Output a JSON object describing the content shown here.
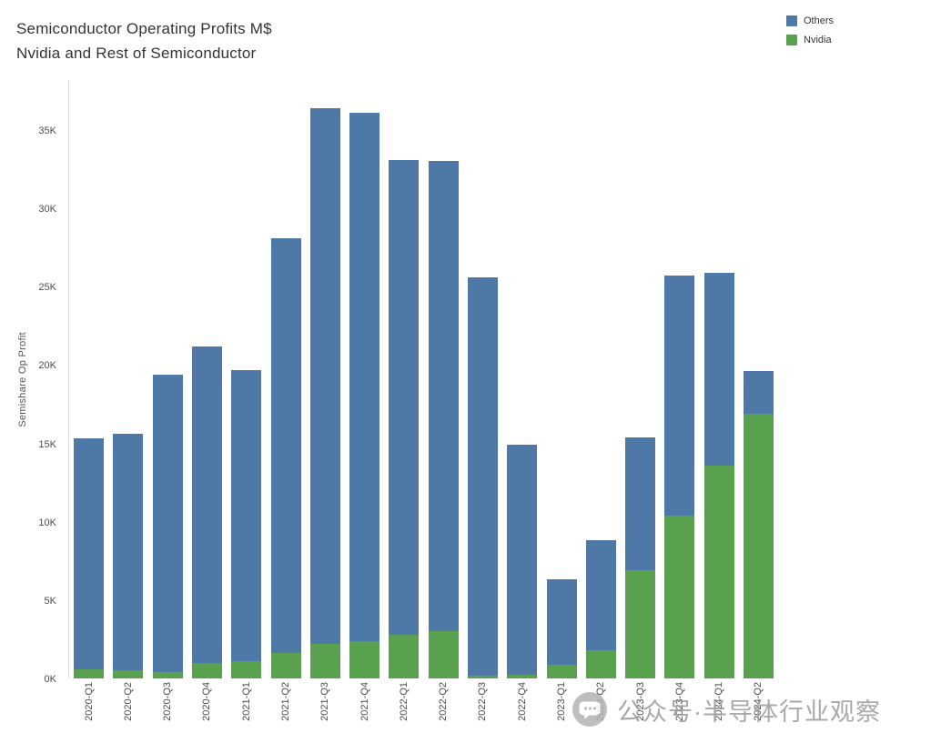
{
  "title": {
    "line1": "Semiconductor Operating Profits M$",
    "line2": "Nvidia and Rest of Semiconductor"
  },
  "legend": {
    "items": [
      {
        "label": "Others",
        "color": "#4e79a7"
      },
      {
        "label": "Nvidia",
        "color": "#59a14f"
      }
    ]
  },
  "watermark": {
    "text": "公众号·半导体行业观察",
    "icon": "wechat-icon"
  },
  "chart_data": {
    "type": "bar",
    "stacked": true,
    "title": "Semiconductor Operating Profits M$",
    "subtitle": "Nvidia and Rest of Semiconductor",
    "xlabel": "",
    "ylabel": "Semishare Op Profit",
    "categories": [
      "2020-Q1",
      "2020-Q2",
      "2020-Q3",
      "2020-Q4",
      "2021-Q1",
      "2021-Q2",
      "2021-Q3",
      "2021-Q4",
      "2022-Q1",
      "2022-Q2",
      "2022-Q3",
      "2022-Q4",
      "2023-Q1",
      "2023-Q2",
      "2023-Q3",
      "2023-Q4",
      "2024-Q1",
      "2024-Q2"
    ],
    "series": [
      {
        "name": "Nvidia",
        "color": "#59a14f",
        "values": [
          600,
          550,
          400,
          1000,
          1100,
          1600,
          2200,
          2400,
          2800,
          3000,
          150,
          250,
          900,
          1800,
          6900,
          10400,
          13600,
          16900
        ]
      },
      {
        "name": "Others",
        "color": "#4e79a7",
        "values": [
          14700,
          15050,
          19000,
          20200,
          18600,
          26500,
          34200,
          33700,
          30300,
          30000,
          25450,
          14650,
          5400,
          7000,
          8500,
          15300,
          12300,
          2700
        ]
      }
    ],
    "totals": [
      15300,
      15600,
      19400,
      21200,
      19700,
      28100,
      36400,
      36100,
      33100,
      33000,
      25600,
      14900,
      6300,
      8800,
      15400,
      25700,
      25900,
      19600
    ],
    "ylim": [
      0,
      38000
    ],
    "ytick_values": [
      0,
      5000,
      10000,
      15000,
      20000,
      25000,
      30000,
      35000
    ],
    "ytick_labels": [
      "0K",
      "5K",
      "10K",
      "15K",
      "20K",
      "25K",
      "30K",
      "35K"
    ],
    "legend_position": "top-right",
    "grid": false
  }
}
